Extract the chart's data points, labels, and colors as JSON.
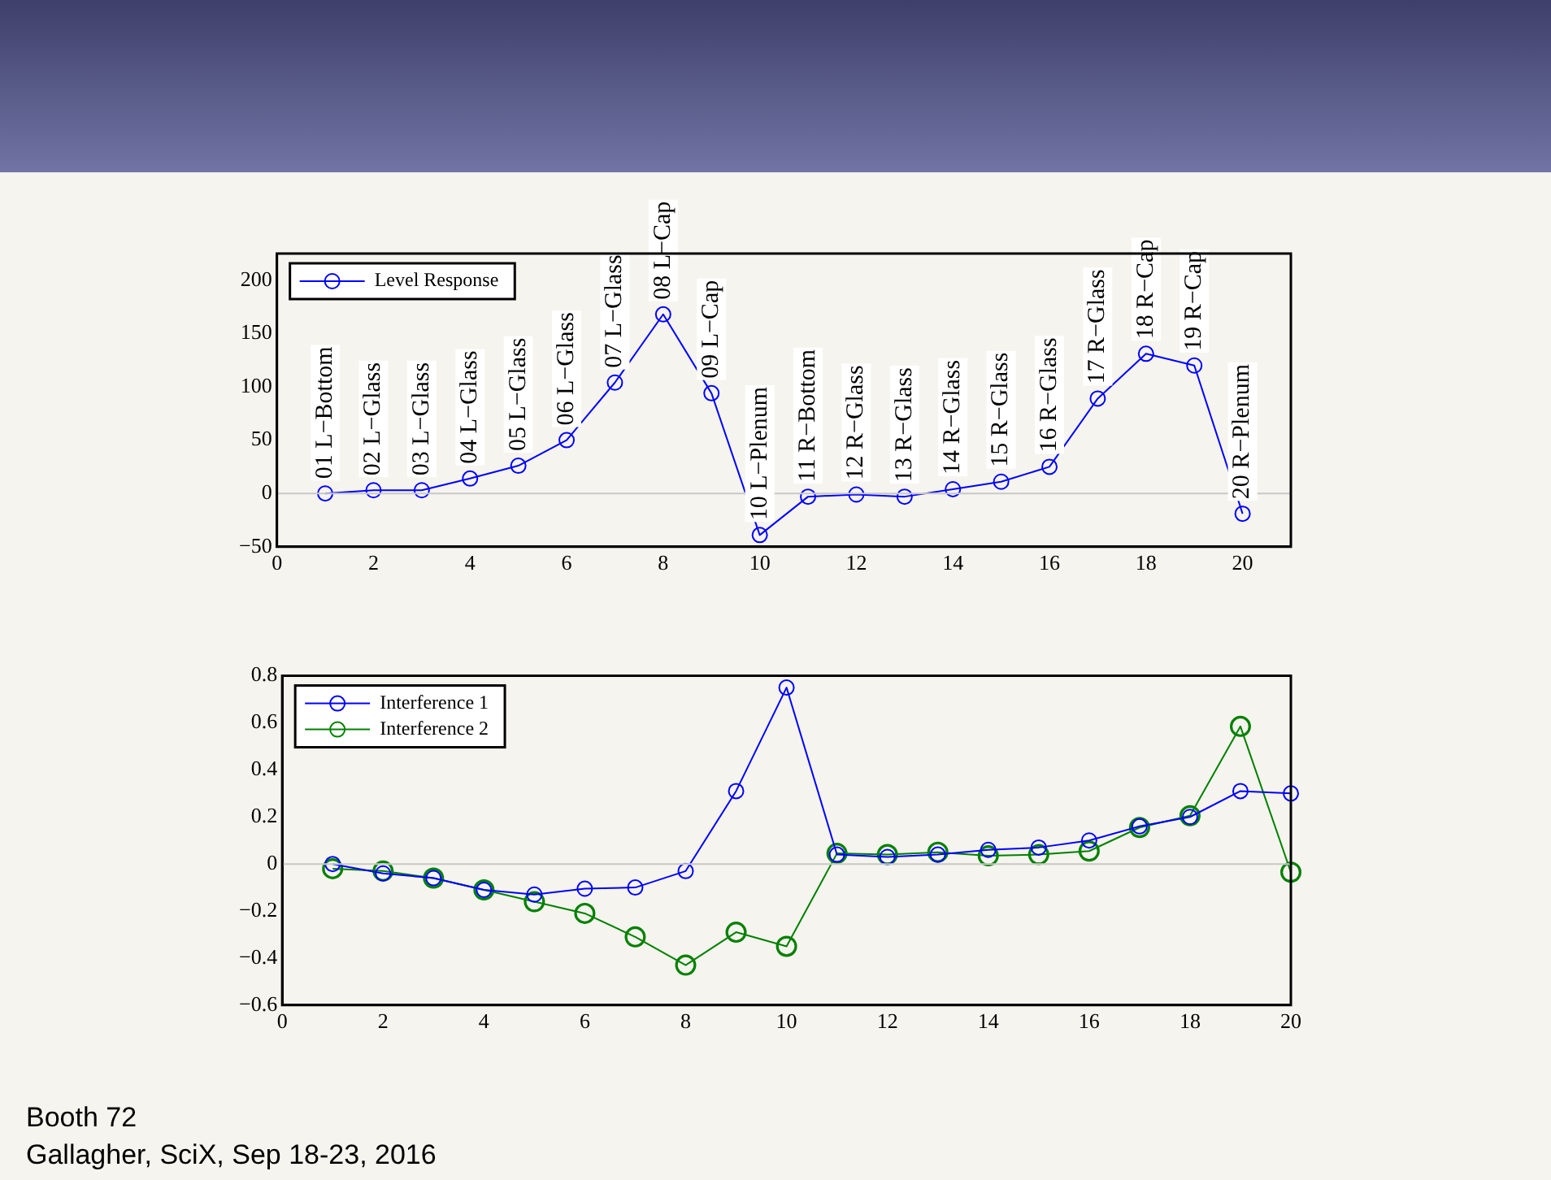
{
  "chart_data": [
    {
      "type": "line",
      "marker": "circle",
      "legend": "top left",
      "grid": false,
      "x": [
        1,
        2,
        3,
        4,
        5,
        6,
        7,
        8,
        9,
        10,
        11,
        12,
        13,
        14,
        15,
        16,
        17,
        18,
        19,
        20
      ],
      "xlim": [
        0,
        21
      ],
      "xticks": [
        0,
        2,
        4,
        6,
        8,
        10,
        12,
        14,
        16,
        18,
        20
      ],
      "ylim": [
        -50,
        225
      ],
      "yticks": [
        -50,
        0,
        50,
        100,
        150,
        200
      ],
      "ref_lines": [
        {
          "axis": "y",
          "value": 0,
          "color": "#c8c8c8"
        }
      ],
      "series": [
        {
          "name": "Level Response",
          "color": "#0000ff",
          "values": [
            0,
            3,
            3,
            14,
            26,
            50,
            104,
            168,
            94,
            -39,
            -3,
            -1,
            -3,
            4,
            11,
            25,
            89,
            131,
            120,
            -19
          ]
        }
      ],
      "annotations": [
        {
          "text": "01 L−Bottom",
          "x": 1,
          "y": 0
        },
        {
          "text": "02 L−Glass",
          "x": 2,
          "y": 3
        },
        {
          "text": "03 L−Glass",
          "x": 3,
          "y": 3
        },
        {
          "text": "04 L−Glass",
          "x": 4,
          "y": 14
        },
        {
          "text": "05 L−Glass",
          "x": 5,
          "y": 26
        },
        {
          "text": "06 L−Glass",
          "x": 6,
          "y": 50
        },
        {
          "text": "07 L−Glass",
          "x": 7,
          "y": 104
        },
        {
          "text": "08 L−Cap",
          "x": 8,
          "y": 168
        },
        {
          "text": "09 L−Cap",
          "x": 9,
          "y": 94
        },
        {
          "text": "10 L−Plenum",
          "x": 10,
          "y": -39
        },
        {
          "text": "11 R−Bottom",
          "x": 11,
          "y": -3
        },
        {
          "text": "12 R−Glass",
          "x": 12,
          "y": -1
        },
        {
          "text": "13 R−Glass",
          "x": 13,
          "y": -3
        },
        {
          "text": "14 R−Glass",
          "x": 14,
          "y": 4
        },
        {
          "text": "15 R−Glass",
          "x": 15,
          "y": 11
        },
        {
          "text": "16 R−Glass",
          "x": 16,
          "y": 25
        },
        {
          "text": "17 R−Glass",
          "x": 17,
          "y": 89
        },
        {
          "text": "18 R−Cap",
          "x": 18,
          "y": 131
        },
        {
          "text": "19 R−Cap",
          "x": 19,
          "y": 120
        },
        {
          "text": "20 R−Plenum",
          "x": 20,
          "y": -19
        }
      ]
    },
    {
      "type": "line",
      "marker": "circle",
      "legend": "top left",
      "grid": false,
      "x": [
        1,
        2,
        3,
        4,
        5,
        6,
        7,
        8,
        9,
        10,
        11,
        12,
        13,
        14,
        15,
        16,
        17,
        18,
        19,
        20
      ],
      "xlim": [
        0,
        20
      ],
      "xticks": [
        0,
        2,
        4,
        6,
        8,
        10,
        12,
        14,
        16,
        18,
        20
      ],
      "ylim": [
        -0.6,
        0.8
      ],
      "yticks": [
        -0.6,
        -0.4,
        -0.2,
        0,
        0.2,
        0.4,
        0.6,
        0.8
      ],
      "ref_lines": [
        {
          "axis": "y",
          "value": 0,
          "color": "#c8c8c8"
        }
      ],
      "series": [
        {
          "name": "Interference 1",
          "color": "#0000ff",
          "values": [
            0,
            -0.04,
            -0.06,
            -0.11,
            -0.13,
            -0.105,
            -0.1,
            -0.03,
            0.31,
            0.75,
            0.04,
            0.03,
            0.04,
            0.06,
            0.07,
            0.1,
            0.16,
            0.2,
            0.31,
            0.3
          ]
        },
        {
          "name": "Interference 2",
          "color": "#008000",
          "values": [
            -0.02,
            -0.03,
            -0.06,
            -0.11,
            -0.16,
            -0.21,
            -0.31,
            -0.43,
            -0.29,
            -0.35,
            0.045,
            0.04,
            0.05,
            0.035,
            0.04,
            0.055,
            0.155,
            0.205,
            0.585,
            -0.035
          ]
        }
      ],
      "annotations": [
        "Booth 72",
        "Gallagher, SciX, Sep 18-23, 2016"
      ]
    }
  ]
}
